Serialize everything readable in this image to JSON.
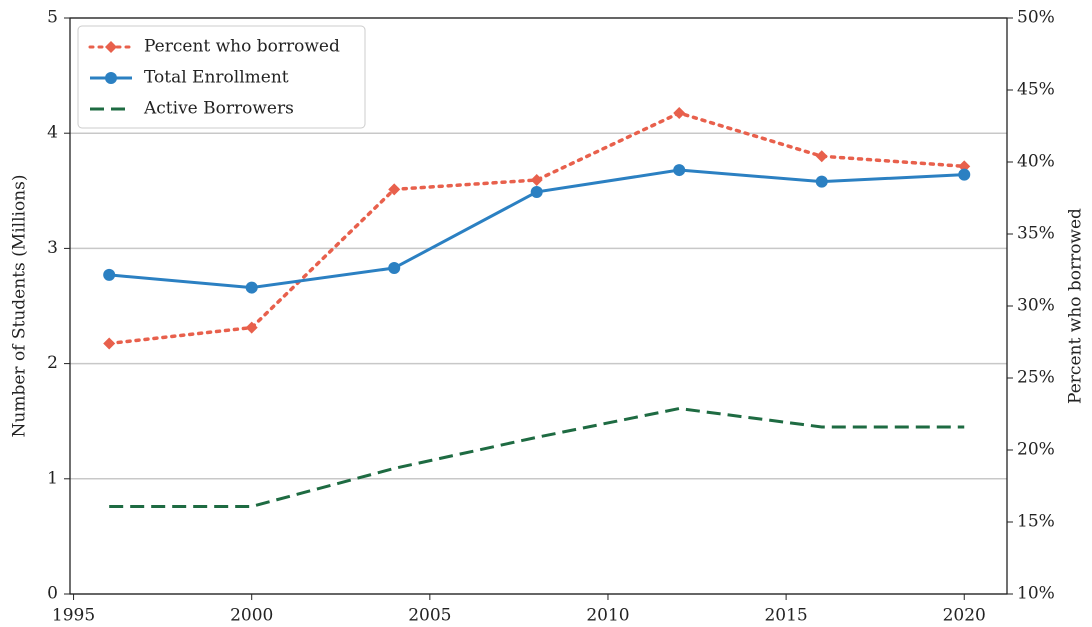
{
  "chart_data": {
    "type": "line",
    "x": [
      1996,
      2000,
      2004,
      2008,
      2012,
      2016,
      2020
    ],
    "xlim": [
      1994.9,
      2021.2
    ],
    "xticks": [
      1995,
      2000,
      2005,
      2010,
      2015,
      2020
    ],
    "ylabel": "Number of Students (Millions)",
    "ylim": [
      0,
      5
    ],
    "yticks": [
      0,
      1,
      2,
      3,
      4,
      5
    ],
    "y2label": "Percent who borrowed",
    "y2lim": [
      10,
      50
    ],
    "y2ticks": [
      {
        "value": 10,
        "label": "10%"
      },
      {
        "value": 15,
        "label": "15%"
      },
      {
        "value": 20,
        "label": "20%"
      },
      {
        "value": 25,
        "label": "25%"
      },
      {
        "value": 30,
        "label": "30%"
      },
      {
        "value": 35,
        "label": "35%"
      },
      {
        "value": 40,
        "label": "40%"
      },
      {
        "value": 45,
        "label": "45%"
      },
      {
        "value": 50,
        "label": "50%"
      }
    ],
    "grid": true,
    "legend": "upper left",
    "series": [
      {
        "name": "Percent who borrowed",
        "color": "#e8604c",
        "axis": "y2",
        "linestyle": "dotted",
        "marker": "diamond",
        "values": [
          27.4,
          28.5,
          38.1,
          38.75,
          43.4,
          40.4,
          39.7
        ]
      },
      {
        "name": "Total Enrollment",
        "color": "#2b80c2",
        "linestyle": "solid",
        "marker": "circle",
        "values": [
          2.77,
          2.66,
          2.83,
          3.49,
          3.68,
          3.58,
          3.64
        ]
      },
      {
        "name": "Active Borrowers",
        "color": "#1e6b42",
        "linestyle": "dashed",
        "marker": "none",
        "values": [
          0.76,
          0.76,
          1.09,
          1.36,
          1.61,
          1.45,
          1.45
        ]
      }
    ]
  }
}
